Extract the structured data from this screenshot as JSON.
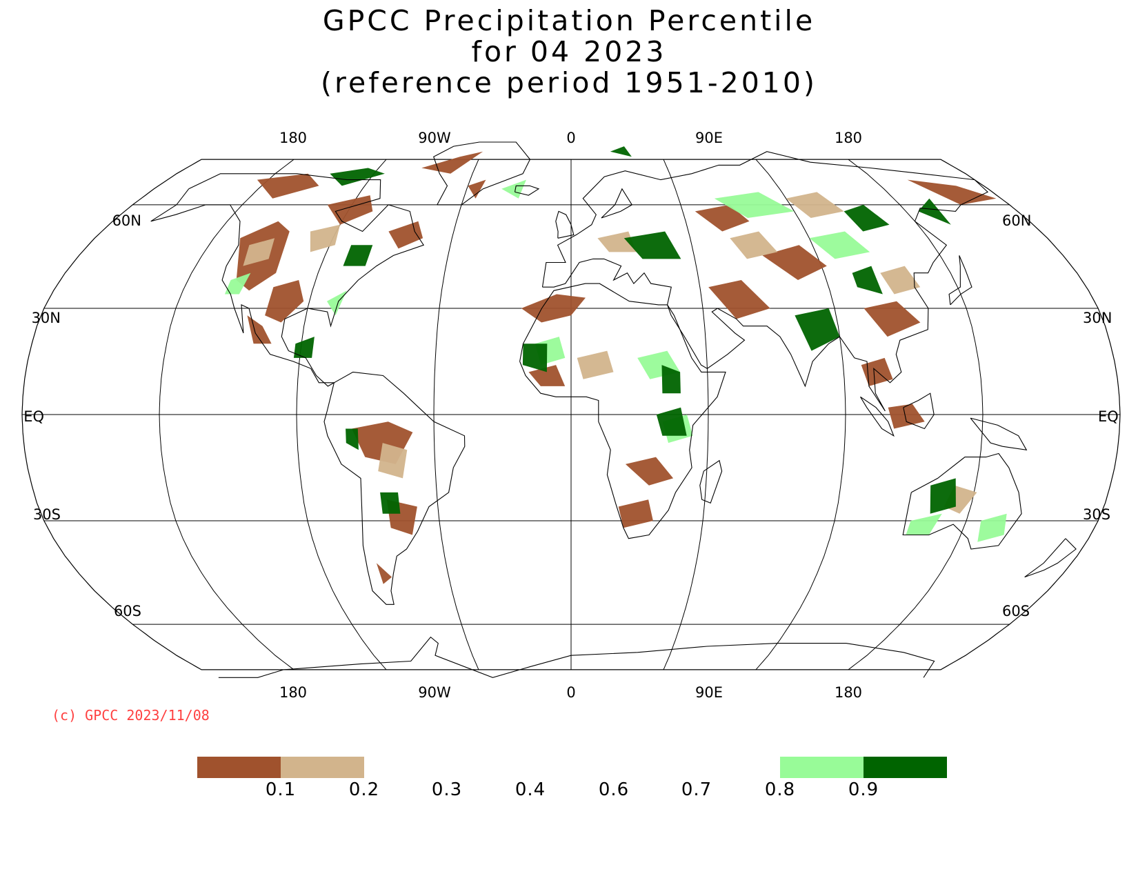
{
  "title": {
    "line1": "GPCC Precipitation Percentile",
    "line2": "for 04 2023",
    "line3": "(reference period 1951-2010)"
  },
  "map": {
    "projection": "robinson",
    "top_lon_labels": [
      "180",
      "90W",
      "0",
      "90E",
      "180"
    ],
    "bottom_lon_labels": [
      "180",
      "90W",
      "0",
      "90E",
      "180"
    ],
    "left_lat_labels": [
      "60N",
      "30N",
      "EQ",
      "30S",
      "60S"
    ],
    "right_lat_labels": [
      "60N",
      "30N",
      "EQ",
      "30S",
      "60S"
    ]
  },
  "copyright": "(c) GPCC 2023/11/08",
  "legend": {
    "colors": {
      "very_dry": "#a0522d",
      "dry": "#d2b48c",
      "wet": "#98fb98",
      "very_wet": "#006400"
    },
    "labels": [
      "0.1",
      "0.2",
      "0.3",
      "0.4",
      "0.6",
      "0.7",
      "0.8",
      "0.9"
    ]
  }
}
